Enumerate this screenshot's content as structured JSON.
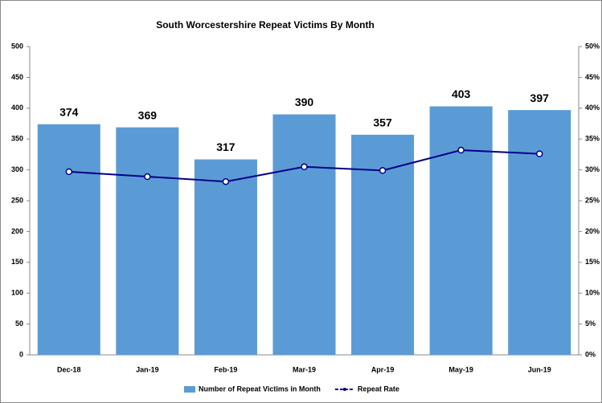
{
  "chart_data": {
    "type": "bar",
    "title": "South Worcestershire Repeat Victims By Month",
    "categories": [
      "Dec-18",
      "Jan-19",
      "Feb-19",
      "Mar-19",
      "Apr-19",
      "May-19",
      "Jun-19"
    ],
    "series": [
      {
        "name": "Number of Repeat Victims in Month",
        "type": "bar",
        "color": "#5b9bd5",
        "values": [
          374,
          369,
          317,
          390,
          357,
          403,
          397
        ]
      },
      {
        "name": "Repeat Rate",
        "type": "line",
        "axis": "y2",
        "color": "#00008b",
        "values": [
          29.7,
          28.9,
          28.1,
          30.5,
          29.9,
          33.2,
          32.6
        ]
      }
    ],
    "ylim": [
      0,
      500
    ],
    "yticks": [
      0,
      50,
      100,
      150,
      200,
      250,
      300,
      350,
      400,
      450,
      500
    ],
    "y2lim": [
      0,
      50
    ],
    "y2ticks": [
      {
        "value": 0,
        "label": "0%"
      },
      {
        "value": 5,
        "label": "5%"
      },
      {
        "value": 10,
        "label": "10%"
      },
      {
        "value": 15,
        "label": "15%"
      },
      {
        "value": 20,
        "label": "20%"
      },
      {
        "value": 25,
        "label": "25%"
      },
      {
        "value": 30,
        "label": "30%"
      },
      {
        "value": 35,
        "label": "35%"
      },
      {
        "value": 40,
        "label": "40%"
      },
      {
        "value": 45,
        "label": "45%"
      },
      {
        "value": 50,
        "label": "50%"
      }
    ],
    "legend": "bottom",
    "grid": false
  }
}
